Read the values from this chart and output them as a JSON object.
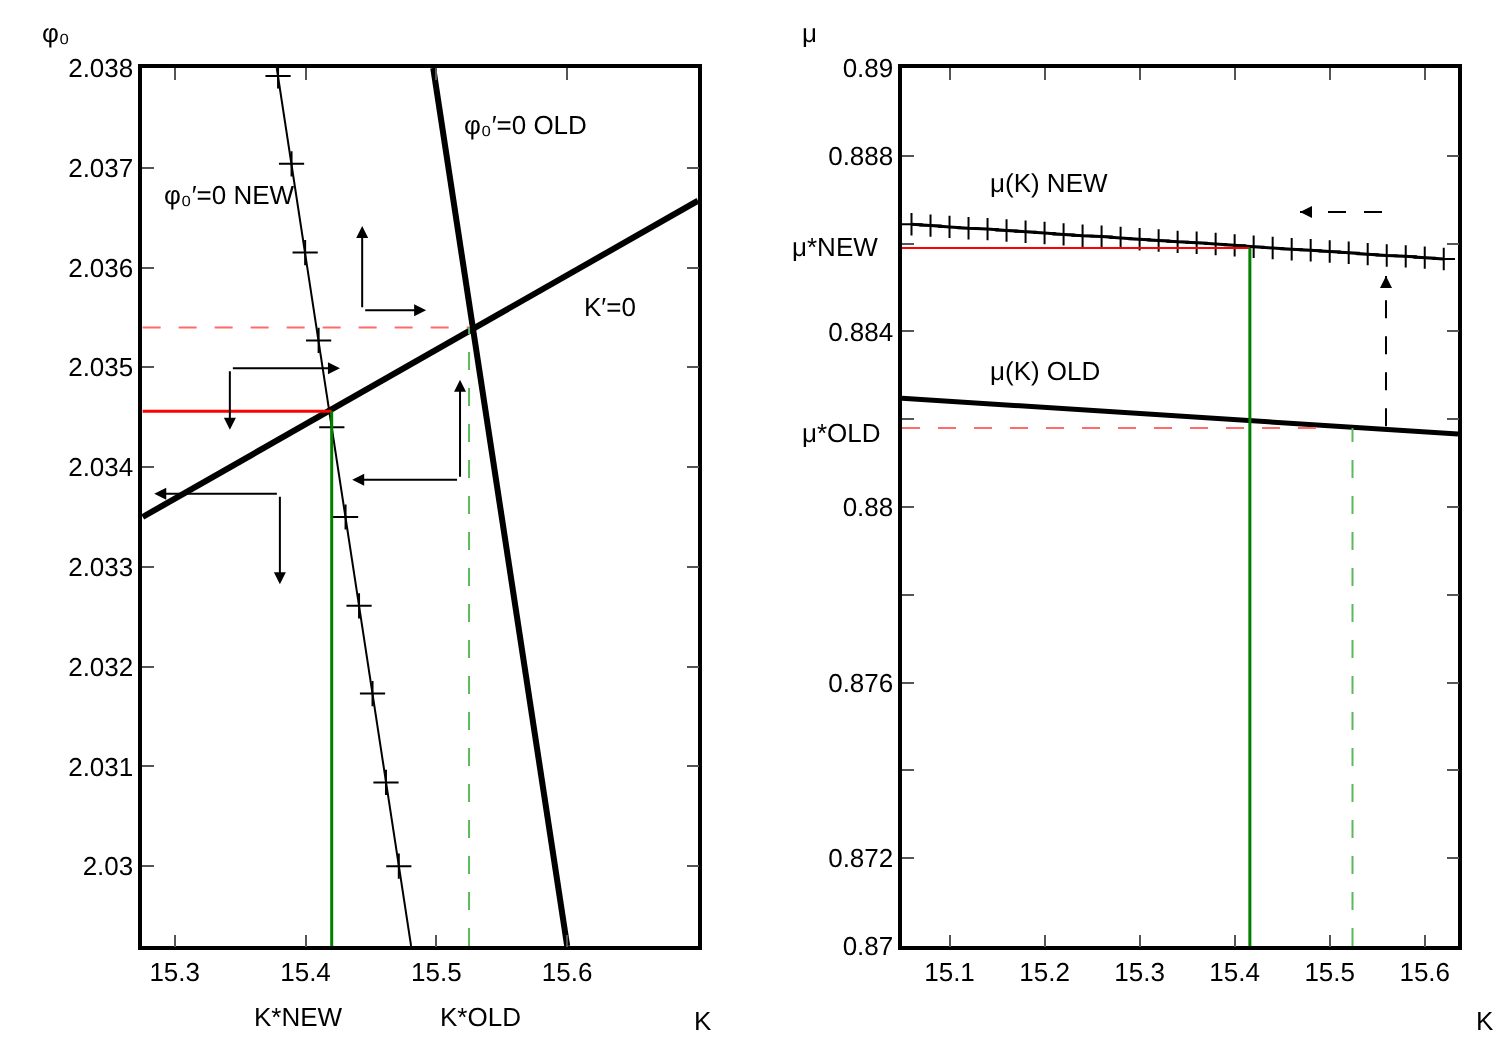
{
  "chart_data": [
    {
      "type": "line",
      "xlabel": "K",
      "ylabel": "φ₀",
      "xlim": [
        15.275,
        15.7
      ],
      "ylim": [
        2.0292,
        2.038
      ],
      "xticks": [
        15.3,
        15.4,
        15.5,
        15.6
      ],
      "yticks": [
        2.03,
        2.031,
        2.032,
        2.033,
        2.034,
        2.035,
        2.036,
        2.037,
        2.038
      ],
      "series": [
        {
          "color": "#000000",
          "x": [
            15.4976,
            15.6
          ],
          "values": [
            2.038,
            2.0292
          ]
        },
        {
          "color": "#000000",
          "x": [
            15.2755,
            15.7
          ],
          "values": [
            2.0335,
            2.03667
          ]
        },
        {
          "color": "#000000",
          "x": [
            15.378,
            15.4807
          ],
          "values": [
            2.038,
            2.0292
          ]
        },
        {
          "type": "scatter",
          "marker": "cross",
          "color": "#000000",
          "x": [
            15.379,
            15.3893,
            15.3997,
            15.41,
            15.4201,
            15.4306,
            15.4409,
            15.4512,
            15.4615,
            15.4713
          ],
          "values": [
            2.03792,
            2.03704,
            2.03615,
            2.03527,
            2.0344,
            2.0335,
            2.03261,
            2.03173,
            2.03084,
            2.03
          ]
        },
        {
          "color": "#ff0000",
          "x": [
            15.2755,
            15.42
          ],
          "values": [
            2.03456,
            2.03456
          ]
        },
        {
          "color": "#ff6a6a",
          "line_style": "dashed",
          "x": [
            15.2755,
            15.525
          ],
          "values": [
            2.0354,
            2.0354
          ]
        },
        {
          "color": "#008000",
          "x": [
            15.42,
            15.42
          ],
          "values": [
            2.0292,
            2.03456
          ]
        },
        {
          "color": "#5cb85c",
          "line_style": "dashed",
          "x": [
            15.525,
            15.525
          ],
          "values": [
            2.0292,
            2.0354
          ]
        }
      ],
      "annotations": [
        "φ₀′=0 OLD",
        "φ₀′=0 NEW",
        "K′=0",
        "K*NEW",
        "K*OLD"
      ]
    },
    {
      "type": "line",
      "xlabel": "K",
      "ylabel": "μ",
      "xlim": [
        15.05,
        15.635
      ],
      "ylim": [
        0.87,
        0.89
      ],
      "xticks": [
        15.1,
        15.2,
        15.3,
        15.4,
        15.5,
        15.6
      ],
      "yticks": [
        0.87,
        0.872,
        {
          "value": 0.874,
          "label": null
        },
        0.876,
        {
          "value": 0.878,
          "label": null
        },
        0.88,
        {
          "value": 0.882,
          "label": null
        },
        0.884,
        {
          "value": 0.886,
          "label": null
        },
        0.888,
        0.89
      ],
      "series": [
        {
          "color": "#000000",
          "marker": "cross",
          "x": [
            15.06,
            15.08,
            15.1,
            15.12,
            15.14,
            15.16,
            15.18,
            15.2,
            15.22,
            15.24,
            15.26,
            15.28,
            15.3,
            15.32,
            15.34,
            15.36,
            15.38,
            15.4,
            15.42,
            15.44,
            15.46,
            15.48,
            15.5,
            15.52,
            15.54,
            15.56,
            15.58,
            15.6,
            15.62
          ],
          "values": [
            0.88644,
            0.88641,
            0.88638,
            0.88635,
            0.88633,
            0.8863,
            0.88627,
            0.88624,
            0.88621,
            0.88618,
            0.88616,
            0.88613,
            0.8861,
            0.88607,
            0.88604,
            0.88602,
            0.88599,
            0.88596,
            0.88593,
            0.8859,
            0.88587,
            0.88585,
            0.88582,
            0.88579,
            0.88576,
            0.88573,
            0.88571,
            0.88568,
            0.88565
          ]
        },
        {
          "color": "#000000",
          "x": [
            15.05,
            15.635
          ],
          "values": [
            0.88248,
            0.88166
          ]
        },
        {
          "color": "#ff0000",
          "x": [
            15.05,
            15.416
          ],
          "values": [
            0.8859,
            0.8859
          ]
        },
        {
          "color": "#ff6a6a",
          "line_style": "dashed",
          "x": [
            15.05,
            15.49
          ],
          "values": [
            0.8818,
            0.8818
          ]
        },
        {
          "color": "#008000",
          "x": [
            15.416,
            15.416
          ],
          "values": [
            0.87,
            0.8859
          ]
        },
        {
          "color": "#5cb85c",
          "line_style": "dashed",
          "x": [
            15.524,
            15.524
          ],
          "values": [
            0.87,
            0.8818
          ]
        }
      ],
      "annotations": [
        "μ(K) NEW",
        "μ(K) OLD",
        "μ*NEW",
        "μ*OLD"
      ]
    }
  ]
}
